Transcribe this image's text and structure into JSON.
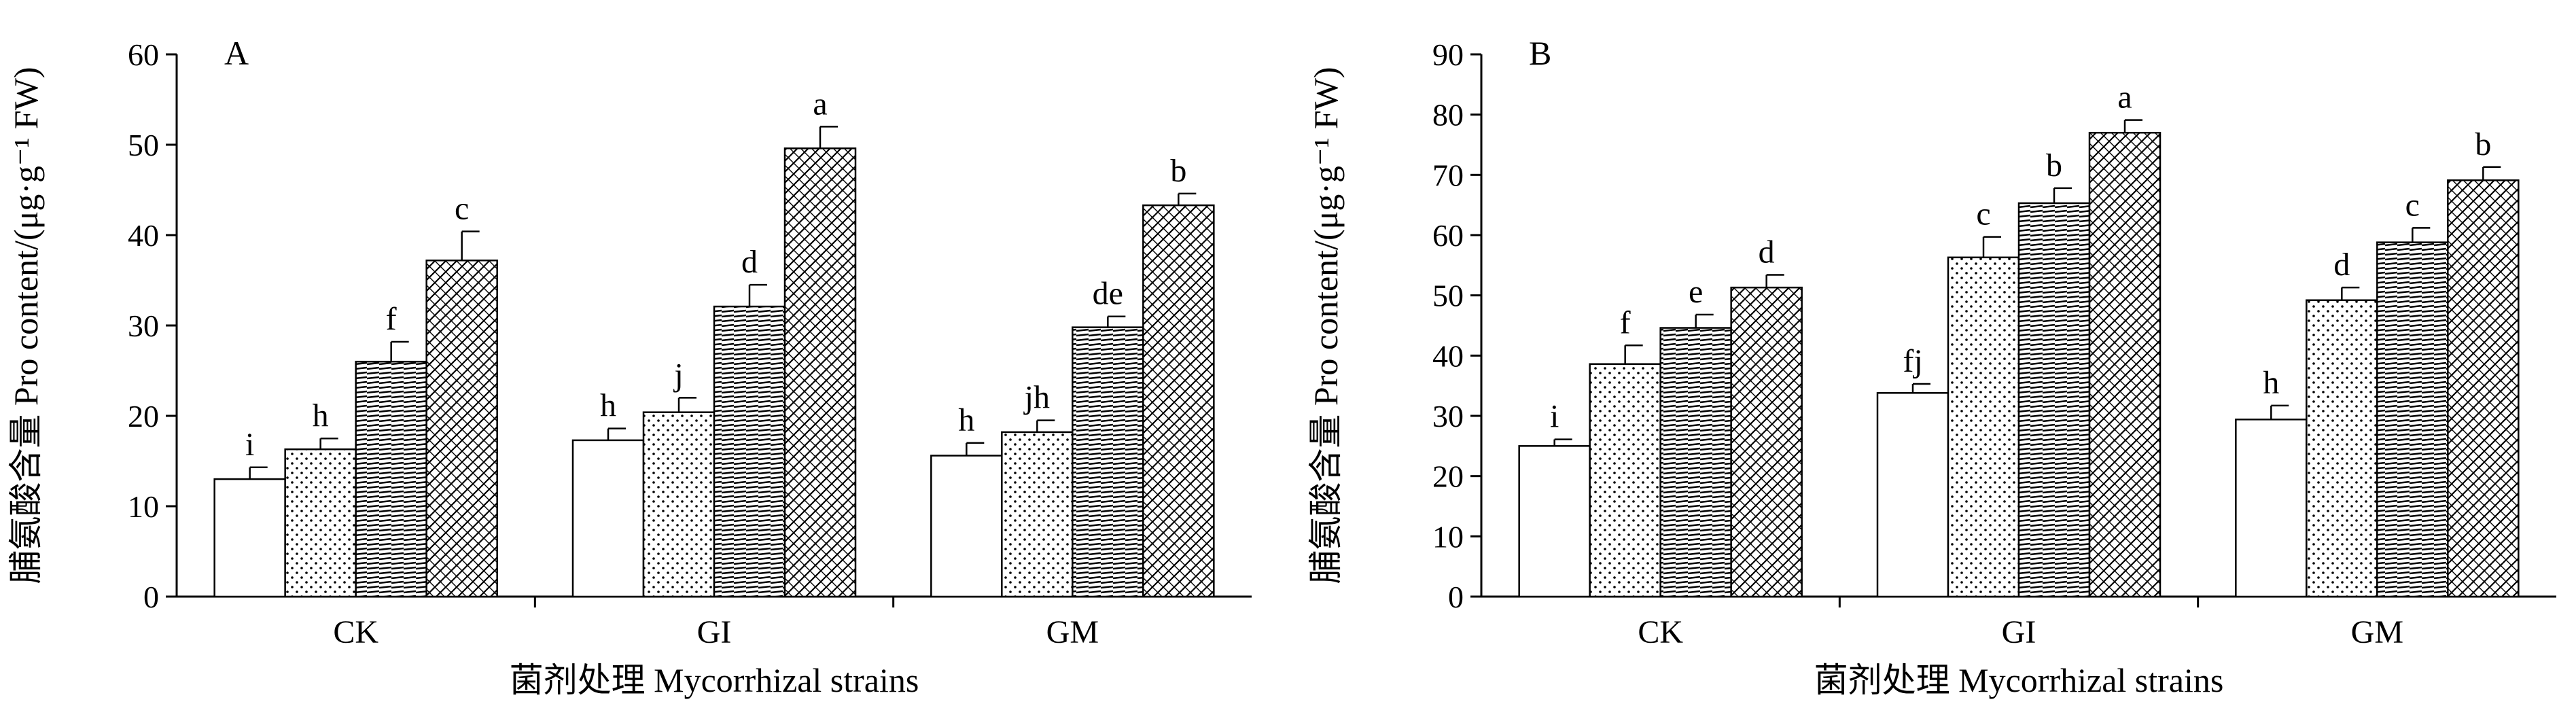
{
  "chart_data": [
    {
      "type": "bar",
      "panel_label": "A",
      "categories": [
        "CK",
        "GI",
        "GM"
      ],
      "ylabel": "脯氨酸含量 Pro content/(μg·g⁻¹ FW)",
      "xlabel": "菌剂处理 Mycorrhizal strains",
      "ylim": [
        0,
        60
      ],
      "yticks": [
        0,
        10,
        20,
        30,
        40,
        50,
        60
      ],
      "grid": false,
      "legend": "none",
      "series": [
        {
          "pattern": "blank",
          "values": [
            13.0,
            17.3,
            15.6
          ],
          "errors": [
            1.3,
            1.3,
            1.4
          ],
          "letters": [
            "i",
            "h",
            "h"
          ]
        },
        {
          "pattern": "dots",
          "values": [
            16.3,
            20.4,
            18.2
          ],
          "errors": [
            1.2,
            1.6,
            1.3
          ],
          "letters": [
            "h",
            "j",
            "jh"
          ]
        },
        {
          "pattern": "hatch",
          "values": [
            26.0,
            32.1,
            29.8
          ],
          "errors": [
            2.2,
            2.4,
            1.2
          ],
          "letters": [
            "f",
            "d",
            "de"
          ]
        },
        {
          "pattern": "crosshatch",
          "values": [
            37.2,
            49.6,
            43.3
          ],
          "errors": [
            3.2,
            2.4,
            1.3
          ],
          "letters": [
            "c",
            "a",
            "b"
          ]
        }
      ]
    },
    {
      "type": "bar",
      "panel_label": "B",
      "categories": [
        "CK",
        "GI",
        "GM"
      ],
      "ylabel": "脯氨酸含量 Pro content/(μg·g⁻¹ FW)",
      "xlabel": "菌剂处理 Mycorrhizal strains",
      "ylim": [
        0,
        90
      ],
      "yticks": [
        0,
        10,
        20,
        30,
        40,
        50,
        60,
        70,
        80,
        90
      ],
      "grid": false,
      "legend": "none",
      "series": [
        {
          "pattern": "blank",
          "values": [
            25.0,
            33.8,
            29.4
          ],
          "errors": [
            1.1,
            1.5,
            2.3
          ],
          "letters": [
            "i",
            "fj",
            "h"
          ]
        },
        {
          "pattern": "dots",
          "values": [
            38.6,
            56.3,
            49.2
          ],
          "errors": [
            3.1,
            3.4,
            2.1
          ],
          "letters": [
            "f",
            "c",
            "d"
          ]
        },
        {
          "pattern": "hatch",
          "values": [
            44.6,
            65.3,
            58.8
          ],
          "errors": [
            2.2,
            2.5,
            2.4
          ],
          "letters": [
            "e",
            "b",
            "c"
          ]
        },
        {
          "pattern": "crosshatch",
          "values": [
            51.3,
            77.0,
            69.1
          ],
          "errors": [
            2.1,
            2.1,
            2.2
          ],
          "letters": [
            "d",
            "a",
            "b"
          ]
        }
      ]
    }
  ]
}
